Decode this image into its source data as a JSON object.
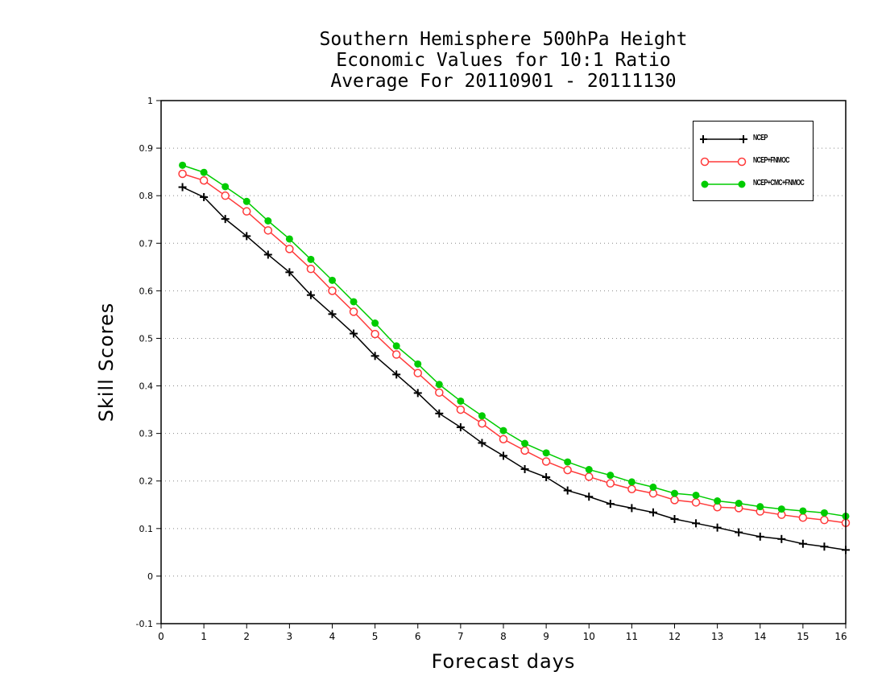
{
  "title": [
    "Southern Hemisphere 500hPa Height",
    "Economic Values for 10:1 Ratio",
    "Average For 20110901 - 20111130"
  ],
  "chart_data": {
    "type": "line",
    "xlabel": "Forecast days",
    "ylabel": "Skill Scores",
    "xlim": [
      0,
      16
    ],
    "ylim": [
      -0.1,
      1
    ],
    "xticks": [
      0,
      1,
      2,
      3,
      4,
      5,
      6,
      7,
      8,
      9,
      10,
      11,
      12,
      13,
      14,
      15,
      16
    ],
    "xtick_labels": [
      "0",
      "1",
      "2",
      "3",
      "4",
      "5",
      "6",
      "7",
      "8",
      "9",
      "10",
      "11",
      "12",
      "13",
      "14",
      "15",
      "16"
    ],
    "yticks": [
      -0.1,
      0,
      0.1,
      0.2,
      0.3,
      0.4,
      0.5,
      0.6,
      0.7,
      0.8,
      0.9,
      1
    ],
    "ytick_labels": [
      "-0.1",
      "0",
      "0.1",
      "0.2",
      "0.3",
      "0.4",
      "0.5",
      "0.6",
      "0.7",
      "0.8",
      "0.9",
      "1"
    ],
    "grid": "horizontal-dotted",
    "legend_position": "top-right",
    "x": [
      0.5,
      1,
      1.5,
      2,
      2.5,
      3,
      3.5,
      4,
      4.5,
      5,
      5.5,
      6,
      6.5,
      7,
      7.5,
      8,
      8.5,
      9,
      9.5,
      10,
      10.5,
      11,
      11.5,
      12,
      12.5,
      13,
      13.5,
      14,
      14.5,
      15,
      15.5,
      16
    ],
    "series": [
      {
        "name": "NCEP",
        "color": "#000000",
        "marker": "plus",
        "values": [
          0.818,
          0.797,
          0.751,
          0.715,
          0.676,
          0.639,
          0.591,
          0.551,
          0.51,
          0.463,
          0.424,
          0.385,
          0.342,
          0.313,
          0.28,
          0.253,
          0.225,
          0.208,
          0.18,
          0.167,
          0.152,
          0.143,
          0.134,
          0.12,
          0.111,
          0.102,
          0.092,
          0.083,
          0.078,
          0.068,
          0.062,
          0.055
        ]
      },
      {
        "name": "NCEP+FNMOC",
        "color": "#ff3a3a",
        "marker": "open-circle",
        "values": [
          0.846,
          0.832,
          0.8,
          0.767,
          0.727,
          0.688,
          0.646,
          0.6,
          0.556,
          0.509,
          0.466,
          0.427,
          0.386,
          0.35,
          0.321,
          0.288,
          0.264,
          0.241,
          0.223,
          0.209,
          0.195,
          0.183,
          0.174,
          0.16,
          0.155,
          0.145,
          0.143,
          0.136,
          0.129,
          0.123,
          0.118,
          0.112
        ]
      },
      {
        "name": "NCEP+CMC+FNMOC",
        "color": "#00cc00",
        "marker": "filled-circle",
        "values": [
          0.864,
          0.849,
          0.819,
          0.788,
          0.747,
          0.709,
          0.666,
          0.622,
          0.577,
          0.532,
          0.484,
          0.446,
          0.403,
          0.368,
          0.337,
          0.306,
          0.279,
          0.259,
          0.24,
          0.224,
          0.212,
          0.198,
          0.187,
          0.174,
          0.17,
          0.158,
          0.153,
          0.146,
          0.141,
          0.137,
          0.133,
          0.126
        ]
      }
    ]
  }
}
